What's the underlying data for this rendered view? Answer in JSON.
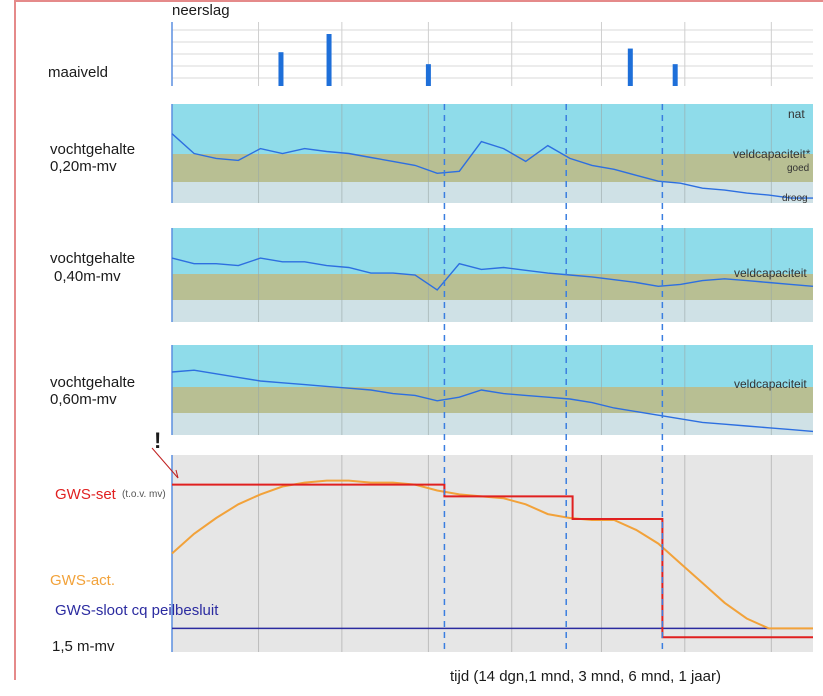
{
  "labels": {
    "neerslag": "neerslag",
    "maaiveld": "maaiveld",
    "vocht1_a": "vochtgehalte",
    "vocht1_b": "0,20m-mv",
    "vocht2_a": "vochtgehalte",
    "vocht2_b": "0,40m-mv",
    "vocht3_a": "vochtgehalte",
    "vocht3_b": "0,60m-mv",
    "nat": "nat",
    "veldcap1": "veldcapaciteit*",
    "goed": "goed",
    "droog": "droog",
    "veldcap2": "veldcapaciteit",
    "veldcap3": "veldcapaciteit",
    "exclam": "!",
    "gws_set": "GWS-set",
    "gws_set_sub": "(t.o.v. mv)",
    "gws_act": "GWS-act.",
    "gws_sloot": "GWS-sloot cq peilbesluit",
    "depth": "1,5 m-mv",
    "xaxis": "tijd (14 dgn,1 mnd, 3 mnd, 6 mnd, 1 jaar)"
  },
  "colors": {
    "frame": "#e58a8a",
    "wet": "#8fdcea",
    "good": "#b8bf93",
    "dry": "#cfe1e6",
    "soil_line": "#2d6fe0",
    "gws_bg": "#e6e6e6",
    "gws_set": "#e02020",
    "gws_act": "#f2a23a",
    "gws_sloot": "#2b2ba0",
    "rain": "#1e6fd9",
    "dash": "#3a7ee0"
  },
  "chart_data": {
    "type": "line",
    "x_markers": [
      "14 dgn",
      "1 mnd",
      "3 mnd",
      "6 mnd",
      "1 jaar"
    ],
    "neerslag": [
      {
        "t": 0.17,
        "value": 0.65
      },
      {
        "t": 0.245,
        "value": 1.0
      },
      {
        "t": 0.4,
        "value": 0.42
      },
      {
        "t": 0.715,
        "value": 0.72
      },
      {
        "t": 0.785,
        "value": 0.42
      }
    ],
    "vochtgehalte_0_20": [
      0.7,
      0.5,
      0.45,
      0.43,
      0.55,
      0.5,
      0.55,
      0.52,
      0.5,
      0.46,
      0.42,
      0.38,
      0.3,
      0.32,
      0.62,
      0.55,
      0.42,
      0.58,
      0.45,
      0.38,
      0.34,
      0.28,
      0.22,
      0.2,
      0.15,
      0.13,
      0.1,
      0.08,
      0.05,
      0.05
    ],
    "vochtgehalte_0_40": [
      0.68,
      0.62,
      0.62,
      0.6,
      0.68,
      0.64,
      0.64,
      0.6,
      0.58,
      0.52,
      0.52,
      0.5,
      0.34,
      0.62,
      0.56,
      0.58,
      0.55,
      0.52,
      0.5,
      0.48,
      0.45,
      0.42,
      0.38,
      0.4,
      0.44,
      0.46,
      0.44,
      0.42,
      0.4,
      0.38
    ],
    "vochtgehalte_0_60": [
      0.7,
      0.72,
      0.68,
      0.64,
      0.6,
      0.58,
      0.56,
      0.54,
      0.52,
      0.5,
      0.46,
      0.44,
      0.38,
      0.42,
      0.5,
      0.46,
      0.44,
      0.42,
      0.4,
      0.36,
      0.3,
      0.26,
      0.22,
      0.18,
      0.14,
      0.12,
      0.1,
      0.08,
      0.06,
      0.04
    ],
    "gws_set": [
      {
        "t0": 0.0,
        "t1": 0.425,
        "level": 0.85
      },
      {
        "t0": 0.425,
        "t1": 0.625,
        "level": 0.79
      },
      {
        "t0": 0.625,
        "t1": 0.765,
        "level": 0.675
      },
      {
        "t0": 0.765,
        "t1": 1.0,
        "level": 0.075
      }
    ],
    "gws_act": [
      0.5,
      0.6,
      0.68,
      0.75,
      0.8,
      0.84,
      0.86,
      0.87,
      0.87,
      0.86,
      0.86,
      0.85,
      0.82,
      0.8,
      0.79,
      0.78,
      0.75,
      0.7,
      0.68,
      0.67,
      0.67,
      0.62,
      0.55,
      0.45,
      0.35,
      0.25,
      0.17,
      0.12,
      0.12,
      0.12
    ],
    "gws_sloot": 0.12
  }
}
